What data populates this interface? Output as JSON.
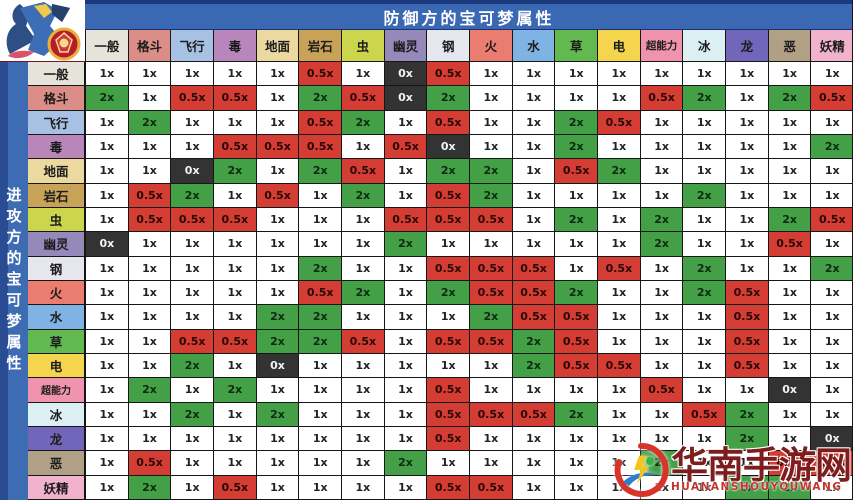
{
  "title": "防御方的宝可梦属性",
  "side_label": "进攻方的宝可梦属性",
  "watermark": {
    "name": "华南手游网",
    "subtitle": "HUANANSHOUYOUWANG"
  },
  "colors": {
    "banner_blue": "#3a68b2",
    "banner_navy": "#1a3a7d",
    "grid_line": "#161616"
  },
  "type_colors": {
    "一般": "#e6e4da",
    "格斗": "#db8d87",
    "飞行": "#a7c1e4",
    "毒": "#b886ba",
    "地面": "#ecd9a0",
    "岩石": "#c7a257",
    "虫": "#ccd64c",
    "幽灵": "#9489b8",
    "钢": "#e6e6ef",
    "火": "#ea7d70",
    "水": "#7fb3e3",
    "草": "#62b94f",
    "电": "#f4d54d",
    "超能力": "#ef93ae",
    "冰": "#dcf0f4",
    "龙": "#7166ba",
    "恶": "#b1a085",
    "妖精": "#f1b2cd"
  },
  "chart_data": {
    "type": "heatmap",
    "title": "防御方的宝可梦属性",
    "row_axis_label": "进攻方的宝可梦属性",
    "legend": "cell colors: 1x = white, 2x = green, 0.5x = red, 0x = black",
    "multiplier_colors": {
      "1x": "#ffffff",
      "2x": "#43a047",
      "0.5x": "#d43d33",
      "0x": "#333333"
    },
    "columns": [
      "一般",
      "格斗",
      "飞行",
      "毒",
      "地面",
      "岩石",
      "虫",
      "幽灵",
      "钢",
      "火",
      "水",
      "草",
      "电",
      "超能力",
      "冰",
      "龙",
      "恶",
      "妖精"
    ],
    "rows": [
      {
        "attacker": "一般",
        "values": [
          "1x",
          "1x",
          "1x",
          "1x",
          "1x",
          "0.5x",
          "1x",
          "0x",
          "0.5x",
          "1x",
          "1x",
          "1x",
          "1x",
          "1x",
          "1x",
          "1x",
          "1x",
          "1x"
        ]
      },
      {
        "attacker": "格斗",
        "values": [
          "2x",
          "1x",
          "0.5x",
          "0.5x",
          "1x",
          "2x",
          "0.5x",
          "0x",
          "2x",
          "1x",
          "1x",
          "1x",
          "1x",
          "0.5x",
          "2x",
          "1x",
          "2x",
          "0.5x"
        ]
      },
      {
        "attacker": "飞行",
        "values": [
          "1x",
          "2x",
          "1x",
          "1x",
          "1x",
          "0.5x",
          "2x",
          "1x",
          "0.5x",
          "1x",
          "1x",
          "2x",
          "0.5x",
          "1x",
          "1x",
          "1x",
          "1x",
          "1x"
        ]
      },
      {
        "attacker": "毒",
        "values": [
          "1x",
          "1x",
          "1x",
          "0.5x",
          "0.5x",
          "0.5x",
          "1x",
          "0.5x",
          "0x",
          "1x",
          "1x",
          "2x",
          "1x",
          "1x",
          "1x",
          "1x",
          "1x",
          "2x"
        ]
      },
      {
        "attacker": "地面",
        "values": [
          "1x",
          "1x",
          "0x",
          "2x",
          "1x",
          "2x",
          "0.5x",
          "1x",
          "2x",
          "2x",
          "1x",
          "0.5x",
          "2x",
          "1x",
          "1x",
          "1x",
          "1x",
          "1x"
        ]
      },
      {
        "attacker": "岩石",
        "values": [
          "1x",
          "0.5x",
          "2x",
          "1x",
          "0.5x",
          "1x",
          "2x",
          "1x",
          "0.5x",
          "2x",
          "1x",
          "1x",
          "1x",
          "1x",
          "2x",
          "1x",
          "1x",
          "1x"
        ]
      },
      {
        "attacker": "虫",
        "values": [
          "1x",
          "0.5x",
          "0.5x",
          "0.5x",
          "1x",
          "1x",
          "1x",
          "0.5x",
          "0.5x",
          "0.5x",
          "1x",
          "2x",
          "1x",
          "2x",
          "1x",
          "1x",
          "2x",
          "0.5x"
        ]
      },
      {
        "attacker": "幽灵",
        "values": [
          "0x",
          "1x",
          "1x",
          "1x",
          "1x",
          "1x",
          "1x",
          "2x",
          "1x",
          "1x",
          "1x",
          "1x",
          "1x",
          "2x",
          "1x",
          "1x",
          "0.5x",
          "1x"
        ]
      },
      {
        "attacker": "钢",
        "values": [
          "1x",
          "1x",
          "1x",
          "1x",
          "1x",
          "2x",
          "1x",
          "1x",
          "0.5x",
          "0.5x",
          "0.5x",
          "1x",
          "0.5x",
          "1x",
          "2x",
          "1x",
          "1x",
          "2x"
        ]
      },
      {
        "attacker": "火",
        "values": [
          "1x",
          "1x",
          "1x",
          "1x",
          "1x",
          "0.5x",
          "2x",
          "1x",
          "2x",
          "0.5x",
          "0.5x",
          "2x",
          "1x",
          "1x",
          "2x",
          "0.5x",
          "1x",
          "1x"
        ]
      },
      {
        "attacker": "水",
        "values": [
          "1x",
          "1x",
          "1x",
          "1x",
          "2x",
          "2x",
          "1x",
          "1x",
          "1x",
          "2x",
          "0.5x",
          "0.5x",
          "1x",
          "1x",
          "1x",
          "0.5x",
          "1x",
          "1x"
        ]
      },
      {
        "attacker": "草",
        "values": [
          "1x",
          "1x",
          "0.5x",
          "0.5x",
          "2x",
          "2x",
          "0.5x",
          "1x",
          "0.5x",
          "0.5x",
          "2x",
          "0.5x",
          "1x",
          "1x",
          "1x",
          "0.5x",
          "1x",
          "1x"
        ]
      },
      {
        "attacker": "电",
        "values": [
          "1x",
          "1x",
          "2x",
          "1x",
          "0x",
          "1x",
          "1x",
          "1x",
          "1x",
          "1x",
          "2x",
          "0.5x",
          "0.5x",
          "1x",
          "1x",
          "0.5x",
          "1x",
          "1x"
        ]
      },
      {
        "attacker": "超能力",
        "values": [
          "1x",
          "2x",
          "1x",
          "2x",
          "1x",
          "1x",
          "1x",
          "1x",
          "0.5x",
          "1x",
          "1x",
          "1x",
          "1x",
          "0.5x",
          "1x",
          "1x",
          "0x",
          "1x"
        ]
      },
      {
        "attacker": "冰",
        "values": [
          "1x",
          "1x",
          "2x",
          "1x",
          "2x",
          "1x",
          "1x",
          "1x",
          "0.5x",
          "0.5x",
          "0.5x",
          "2x",
          "1x",
          "1x",
          "0.5x",
          "2x",
          "1x",
          "1x"
        ]
      },
      {
        "attacker": "龙",
        "values": [
          "1x",
          "1x",
          "1x",
          "1x",
          "1x",
          "1x",
          "1x",
          "1x",
          "0.5x",
          "1x",
          "1x",
          "1x",
          "1x",
          "1x",
          "1x",
          "2x",
          "1x",
          "0x"
        ]
      },
      {
        "attacker": "恶",
        "values": [
          "1x",
          "0.5x",
          "1x",
          "1x",
          "1x",
          "1x",
          "1x",
          "2x",
          "1x",
          "1x",
          "1x",
          "1x",
          "1x",
          "2x",
          "1x",
          "1x",
          "0.5x",
          "0.5x"
        ]
      },
      {
        "attacker": "妖精",
        "values": [
          "1x",
          "2x",
          "1x",
          "0.5x",
          "1x",
          "1x",
          "1x",
          "1x",
          "0.5x",
          "0.5x",
          "1x",
          "1x",
          "1x",
          "1x",
          "1x",
          "2x",
          "2x",
          "1x"
        ]
      }
    ]
  }
}
